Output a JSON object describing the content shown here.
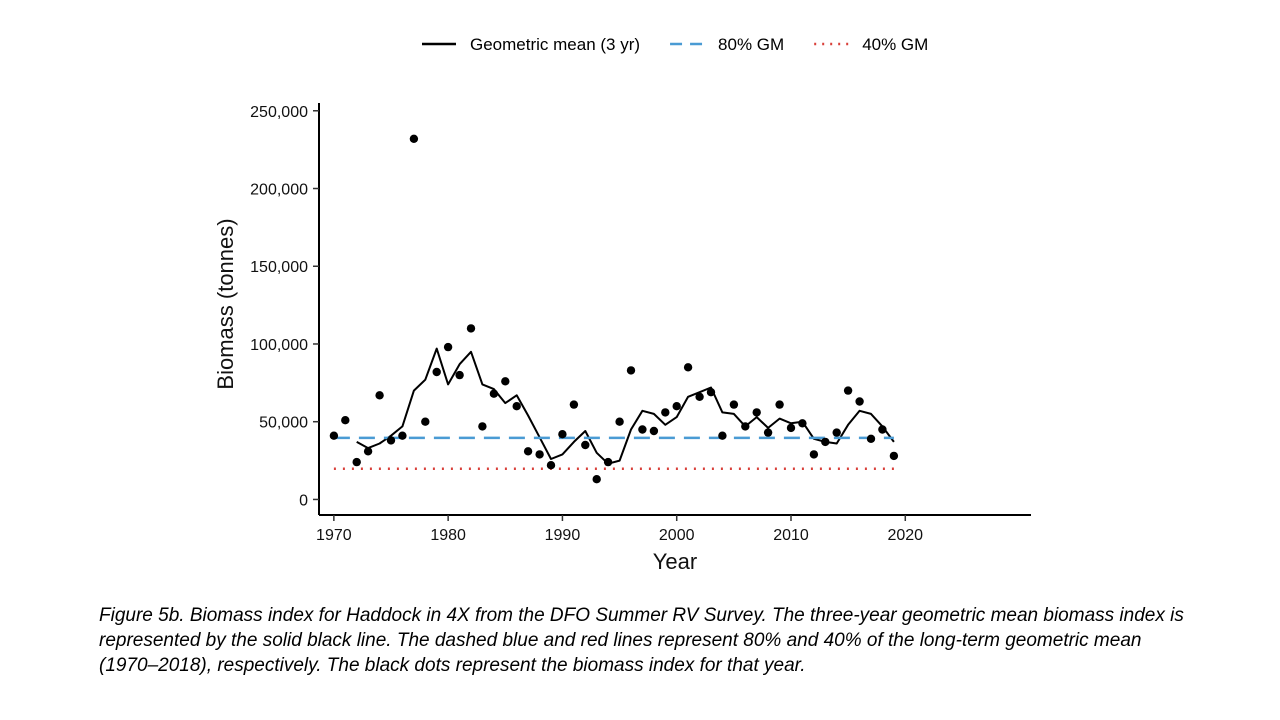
{
  "chart_data": {
    "type": "scatter",
    "xlabel": "Year",
    "ylabel": "Biomass (tonnes)",
    "xlim": [
      1968.7,
      2031
    ],
    "ylim": [
      -10000,
      255000
    ],
    "x_ticks": [
      1970,
      1980,
      1990,
      2000,
      2010,
      2020
    ],
    "y_ticks": [
      0,
      50000,
      100000,
      150000,
      200000,
      250000
    ],
    "x_tick_labels": [
      "1970",
      "1980",
      "1990",
      "2000",
      "2010",
      "2020"
    ],
    "y_tick_labels": [
      "0",
      "50,000",
      "100,000",
      "150,000",
      "200,000",
      "250,000"
    ],
    "grid": false,
    "legend_position": "top",
    "legend": [
      {
        "label": "Geometric mean (3 yr)",
        "style": "solid",
        "color": "#000000"
      },
      {
        "label": "80% GM",
        "style": "dashed",
        "color": "#4a9bd4"
      },
      {
        "label": "40% GM",
        "style": "dotted",
        "color": "#d9403a"
      }
    ],
    "points": {
      "name": "Biomass index",
      "x": [
        1970,
        1971,
        1972,
        1973,
        1974,
        1975,
        1976,
        1977,
        1978,
        1979,
        1980,
        1981,
        1982,
        1983,
        1984,
        1985,
        1986,
        1987,
        1988,
        1989,
        1990,
        1991,
        1992,
        1993,
        1994,
        1995,
        1996,
        1997,
        1998,
        1999,
        2000,
        2001,
        2002,
        2003,
        2004,
        2005,
        2006,
        2007,
        2008,
        2009,
        2010,
        2011,
        2012,
        2013,
        2014,
        2015,
        2016,
        2017,
        2018,
        2019
      ],
      "y": [
        41000,
        51000,
        24000,
        31000,
        67000,
        38000,
        41000,
        232000,
        50000,
        82000,
        98000,
        80000,
        110000,
        47000,
        68000,
        76000,
        60000,
        31000,
        29000,
        22000,
        42000,
        61000,
        35000,
        13000,
        24000,
        50000,
        83000,
        45000,
        44000,
        56000,
        60000,
        85000,
        66000,
        69000,
        41000,
        61000,
        47000,
        56000,
        43000,
        61000,
        46000,
        49000,
        29000,
        37000,
        43000,
        70000,
        63000,
        39000,
        45000,
        28000
      ],
      "color": "#000000"
    },
    "series": [
      {
        "name": "Geometric mean (3 yr)",
        "x": [
          1972,
          1973,
          1974,
          1975,
          1976,
          1977,
          1978,
          1979,
          1980,
          1981,
          1982,
          1983,
          1984,
          1985,
          1986,
          1987,
          1988,
          1989,
          1990,
          1991,
          1992,
          1993,
          1994,
          1995,
          1996,
          1997,
          1998,
          1999,
          2000,
          2001,
          2002,
          2003,
          2004,
          2005,
          2006,
          2007,
          2008,
          2009,
          2010,
          2011,
          2012,
          2013,
          2014,
          2015,
          2016,
          2017,
          2018,
          2019
        ],
        "y": [
          37000,
          33000,
          36000,
          41000,
          47000,
          70000,
          77000,
          97000,
          74000,
          87000,
          95000,
          74000,
          71000,
          62000,
          67000,
          54000,
          40000,
          26000,
          29000,
          37000,
          44000,
          30000,
          23000,
          25000,
          45000,
          57000,
          55000,
          48000,
          53000,
          66000,
          69000,
          72000,
          56000,
          55000,
          47000,
          53000,
          46000,
          52000,
          49000,
          50000,
          39000,
          37000,
          36000,
          48000,
          57000,
          55000,
          47000,
          37000
        ],
        "color": "#000000",
        "style": "solid"
      },
      {
        "name": "80% GM",
        "x": [
          1970,
          2019
        ],
        "y": [
          39600,
          39600
        ],
        "color": "#4a9bd4",
        "style": "dashed"
      },
      {
        "name": "40% GM",
        "x": [
          1970,
          2019
        ],
        "y": [
          19800,
          19800
        ],
        "color": "#d9403a",
        "style": "dotted"
      }
    ]
  },
  "caption": "Figure 5b. Biomass index for Haddock in 4X from the DFO Summer RV Survey. The three-year geometric mean biomass index is represented by the solid black line. The dashed blue and red lines represent 80% and 40% of the long-term geometric mean (1970–2018), respectively. The black dots represent the biomass index for that year."
}
